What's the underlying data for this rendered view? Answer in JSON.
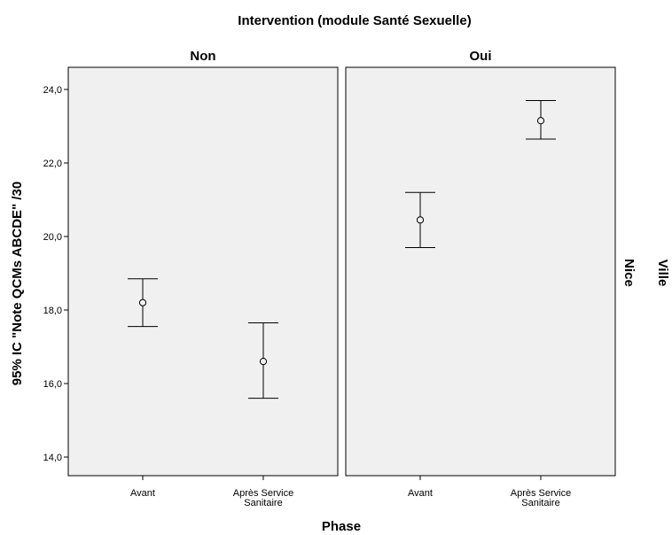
{
  "chart_data": {
    "type": "errorbar",
    "title": "Intervention (module Santé Sexuelle)",
    "xlabel": "Phase",
    "ylabel": "95% IC \"Note QCMs ABCDE\" /30",
    "row_label": "Ville",
    "row_value": "Nice",
    "ylim": [
      13.5,
      24.5
    ],
    "y_ticks": [
      "14,0",
      "16,0",
      "18,0",
      "20,0",
      "22,0",
      "24,0"
    ],
    "y_tick_values": [
      14,
      16,
      18,
      20,
      22,
      24
    ],
    "categories": [
      [
        "Avant"
      ],
      [
        "Après Service",
        "Sanitaire"
      ]
    ],
    "grid": false,
    "panel_background": "#f0f0f0",
    "panels": [
      {
        "name": "Non",
        "points": [
          {
            "mean": 18.2,
            "lower": 17.55,
            "upper": 18.85
          },
          {
            "mean": 16.6,
            "lower": 15.6,
            "upper": 17.65
          }
        ]
      },
      {
        "name": "Oui",
        "points": [
          {
            "mean": 20.45,
            "lower": 19.7,
            "upper": 21.2
          },
          {
            "mean": 23.15,
            "lower": 22.65,
            "upper": 23.7
          }
        ]
      }
    ]
  }
}
